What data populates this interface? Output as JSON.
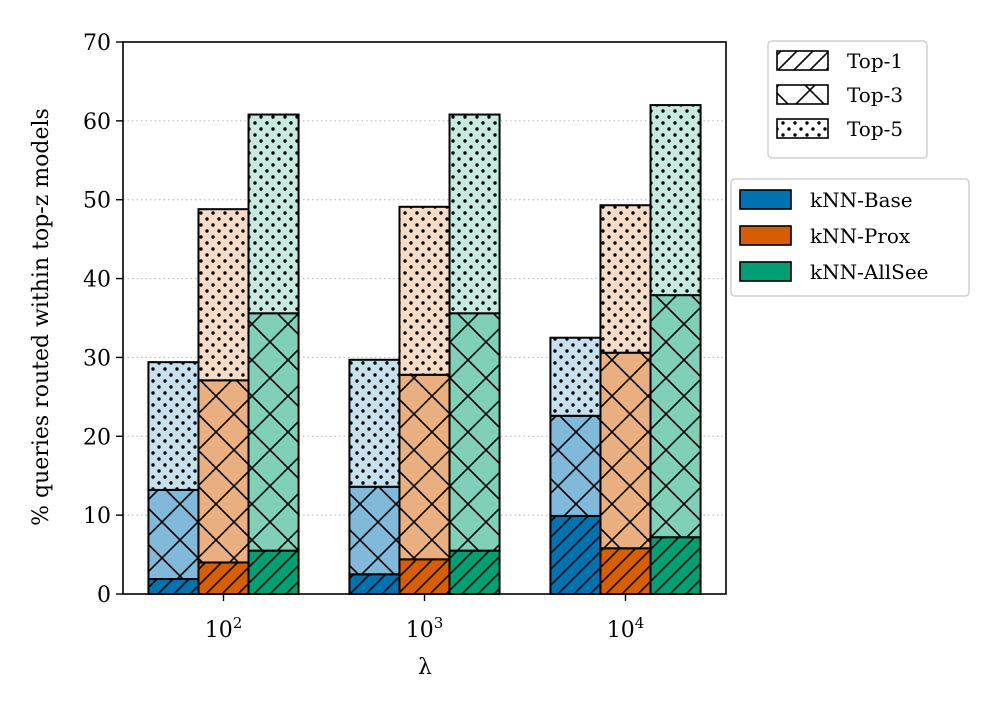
{
  "chart_data": {
    "type": "bar",
    "variant": "grouped-stacked",
    "xlabel": "λ",
    "ylabel": "% queries routed within top-z models",
    "ylim": [
      0,
      70
    ],
    "yticks": [
      0,
      10,
      20,
      30,
      40,
      50,
      60,
      70
    ],
    "grid": "y-dotted",
    "categories": [
      {
        "base": "10",
        "exp": "2"
      },
      {
        "base": "10",
        "exp": "3"
      },
      {
        "base": "10",
        "exp": "4"
      }
    ],
    "series": [
      {
        "name": "kNN-Base",
        "color": "#0072b2",
        "top1": [
          1.9,
          2.5,
          9.9
        ],
        "top3": [
          13.2,
          13.6,
          22.6
        ],
        "top5": [
          29.4,
          29.7,
          32.5
        ]
      },
      {
        "name": "kNN-Prox",
        "color": "#d55e00",
        "top1": [
          4.0,
          4.4,
          5.8
        ],
        "top3": [
          27.1,
          27.8,
          30.6
        ],
        "top5": [
          48.8,
          49.1,
          49.3
        ]
      },
      {
        "name": "kNN-AllSee",
        "color": "#009e73",
        "top1": [
          5.5,
          5.5,
          7.2
        ],
        "top3": [
          35.6,
          35.6,
          37.9
        ],
        "top5": [
          60.8,
          60.8,
          62.0
        ]
      }
    ],
    "pattern_legend": [
      {
        "name": "Top-1",
        "pattern": "diagonal-hatch"
      },
      {
        "name": "Top-3",
        "pattern": "cross-hatch"
      },
      {
        "name": "Top-5",
        "pattern": "dots"
      }
    ],
    "legend_placement": "outside-right"
  }
}
